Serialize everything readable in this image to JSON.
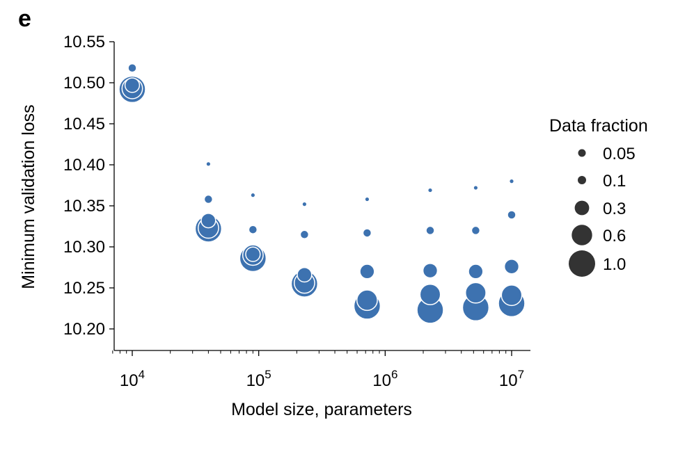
{
  "panel_label": "e",
  "chart_data": {
    "type": "scatter",
    "title": "",
    "xlabel": "Model size, parameters",
    "ylabel": "Minimum validation loss",
    "xscale": "log",
    "xlim": [
      7000,
      13000000
    ],
    "ylim": [
      10.175,
      10.555
    ],
    "xticks": [
      {
        "value": 10000,
        "base": "10",
        "exp": "4"
      },
      {
        "value": 100000,
        "base": "10",
        "exp": "5"
      },
      {
        "value": 1000000,
        "base": "10",
        "exp": "6"
      },
      {
        "value": 10000000,
        "base": "10",
        "exp": "7"
      }
    ],
    "yticks": [
      "10.20",
      "10.25",
      "10.30",
      "10.35",
      "10.40",
      "10.45",
      "10.50",
      "10.55"
    ],
    "grid": false,
    "marker_color": "#3d72b0",
    "legend": {
      "title": "Data fraction",
      "placement": "right",
      "marker_color": "#333333",
      "entries": [
        "0.05",
        "0.1",
        "0.3",
        "0.6",
        "1.0"
      ]
    },
    "points": [
      {
        "x": 10000,
        "y": 10.518,
        "fraction": 0.1
      },
      {
        "x": 10000,
        "y": 10.497,
        "fraction": 0.3
      },
      {
        "x": 10000,
        "y": 10.492,
        "fraction": 1.0
      },
      {
        "x": 10000,
        "y": 10.493,
        "fraction": 0.6
      },
      {
        "x": 40000,
        "y": 10.401,
        "fraction": 0.05
      },
      {
        "x": 40000,
        "y": 10.358,
        "fraction": 0.1
      },
      {
        "x": 40000,
        "y": 10.332,
        "fraction": 0.3
      },
      {
        "x": 40000,
        "y": 10.322,
        "fraction": 1.0
      },
      {
        "x": 40000,
        "y": 10.323,
        "fraction": 0.6
      },
      {
        "x": 90000,
        "y": 10.363,
        "fraction": 0.05
      },
      {
        "x": 90000,
        "y": 10.321,
        "fraction": 0.1
      },
      {
        "x": 90000,
        "y": 10.291,
        "fraction": 0.3
      },
      {
        "x": 90000,
        "y": 10.286,
        "fraction": 1.0
      },
      {
        "x": 90000,
        "y": 10.29,
        "fraction": 0.6
      },
      {
        "x": 230000,
        "y": 10.352,
        "fraction": 0.05
      },
      {
        "x": 230000,
        "y": 10.315,
        "fraction": 0.1
      },
      {
        "x": 230000,
        "y": 10.266,
        "fraction": 0.3
      },
      {
        "x": 230000,
        "y": 10.255,
        "fraction": 1.0
      },
      {
        "x": 230000,
        "y": 10.256,
        "fraction": 0.6
      },
      {
        "x": 720000,
        "y": 10.358,
        "fraction": 0.05
      },
      {
        "x": 720000,
        "y": 10.317,
        "fraction": 0.1
      },
      {
        "x": 720000,
        "y": 10.27,
        "fraction": 0.3
      },
      {
        "x": 720000,
        "y": 10.228,
        "fraction": 1.0
      },
      {
        "x": 720000,
        "y": 10.235,
        "fraction": 0.6
      },
      {
        "x": 2270000,
        "y": 10.369,
        "fraction": 0.05
      },
      {
        "x": 2270000,
        "y": 10.32,
        "fraction": 0.1
      },
      {
        "x": 2270000,
        "y": 10.271,
        "fraction": 0.3
      },
      {
        "x": 2270000,
        "y": 10.223,
        "fraction": 1.0
      },
      {
        "x": 2270000,
        "y": 10.242,
        "fraction": 0.6
      },
      {
        "x": 5200000,
        "y": 10.372,
        "fraction": 0.05
      },
      {
        "x": 5200000,
        "y": 10.32,
        "fraction": 0.1
      },
      {
        "x": 5200000,
        "y": 10.27,
        "fraction": 0.3
      },
      {
        "x": 5200000,
        "y": 10.226,
        "fraction": 1.0
      },
      {
        "x": 5200000,
        "y": 10.244,
        "fraction": 0.6
      },
      {
        "x": 10000000,
        "y": 10.38,
        "fraction": 0.05
      },
      {
        "x": 10000000,
        "y": 10.339,
        "fraction": 0.1
      },
      {
        "x": 10000000,
        "y": 10.276,
        "fraction": 0.3
      },
      {
        "x": 10000000,
        "y": 10.231,
        "fraction": 1.0
      },
      {
        "x": 10000000,
        "y": 10.241,
        "fraction": 0.6
      }
    ]
  }
}
